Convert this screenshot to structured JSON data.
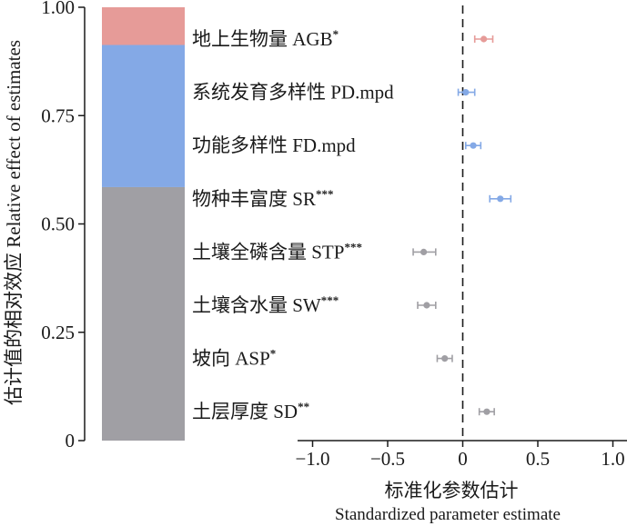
{
  "chart_data": [
    {
      "type": "bar",
      "stacked": true,
      "ylabel": "估计值的相对效应 Relative effect of estimates",
      "ylim": [
        0,
        1
      ],
      "yticks": [
        "0",
        "0.25",
        "0.50",
        "0.75",
        "1.00"
      ],
      "yticks_values": [
        0,
        0.25,
        0.5,
        0.75,
        1.0
      ],
      "segments": [
        {
          "from": 0.0,
          "to": 0.585,
          "color": "#a09fa4"
        },
        {
          "from": 0.585,
          "to": 0.913,
          "color": "#84a9e6"
        },
        {
          "from": 0.913,
          "to": 1.0,
          "color": "#e69b98"
        }
      ]
    },
    {
      "type": "scatter",
      "subtype": "dot-and-whisker",
      "xlabel": "标准化参数估计",
      "xlabel_en": "Standardized parameter estimate",
      "xlim": [
        -1.1,
        1.1
      ],
      "xticks": [
        "−1.0",
        "−0.5",
        "0",
        "0.5",
        "1.0"
      ],
      "xticks_values": [
        -1.0,
        -0.5,
        0,
        0.5,
        1.0
      ],
      "reference_line": 0,
      "points": [
        {
          "label": "地上生物量 AGB",
          "sig": "*",
          "estimate": 0.14,
          "lower": 0.08,
          "upper": 0.2,
          "color": "#e69b98"
        },
        {
          "label": "系统发育多样性 PD.mpd",
          "sig": "",
          "estimate": 0.02,
          "lower": -0.03,
          "upper": 0.08,
          "color": "#84a9e6"
        },
        {
          "label": "功能多样性 FD.mpd",
          "sig": "",
          "estimate": 0.07,
          "lower": 0.02,
          "upper": 0.12,
          "color": "#84a9e6"
        },
        {
          "label": "物种丰富度 SR",
          "sig": "***",
          "estimate": 0.25,
          "lower": 0.18,
          "upper": 0.32,
          "color": "#84a9e6"
        },
        {
          "label": "土壤全磷含量 STP",
          "sig": "***",
          "estimate": -0.26,
          "lower": -0.33,
          "upper": -0.18,
          "color": "#a09fa4"
        },
        {
          "label": "土壤含水量 SW",
          "sig": "***",
          "estimate": -0.24,
          "lower": -0.3,
          "upper": -0.18,
          "color": "#a09fa4"
        },
        {
          "label": "坡向 ASP",
          "sig": "*",
          "estimate": -0.12,
          "lower": -0.17,
          "upper": -0.07,
          "color": "#a09fa4"
        },
        {
          "label": "土层厚度 SD",
          "sig": "**",
          "estimate": 0.16,
          "lower": 0.11,
          "upper": 0.21,
          "color": "#a09fa4"
        }
      ]
    }
  ]
}
